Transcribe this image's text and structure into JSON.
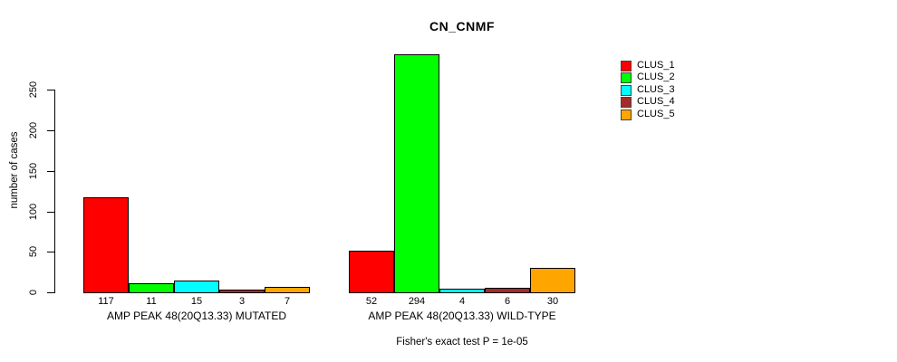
{
  "chart_data": {
    "type": "bar",
    "title": "CN_CNMF",
    "ylabel": "number of cases",
    "xlabel": "",
    "yticks": [
      0,
      50,
      100,
      150,
      200,
      250
    ],
    "ylim": [
      0,
      294
    ],
    "grid": false,
    "legend_position": "top-right",
    "bar_value_labels": true,
    "categories": [
      "AMP PEAK 48(20Q13.33) MUTATED",
      "AMP PEAK 48(20Q13.33) WILD-TYPE"
    ],
    "series": [
      {
        "name": "CLUS_1",
        "color": "#FF0000",
        "values": [
          117,
          52
        ]
      },
      {
        "name": "CLUS_2",
        "color": "#00FF00",
        "values": [
          11,
          294
        ]
      },
      {
        "name": "CLUS_3",
        "color": "#00FFFF",
        "values": [
          15,
          4
        ]
      },
      {
        "name": "CLUS_4",
        "color": "#A52A2A",
        "values": [
          3,
          6
        ]
      },
      {
        "name": "CLUS_5",
        "color": "#FFA500",
        "values": [
          7,
          30
        ]
      }
    ],
    "footnote": "Fisher's exact test P = 1e-05",
    "colors": {
      "background": "#FFFFFF",
      "axis": "#000000",
      "bar_border": "#000000",
      "text": "#000000"
    }
  }
}
